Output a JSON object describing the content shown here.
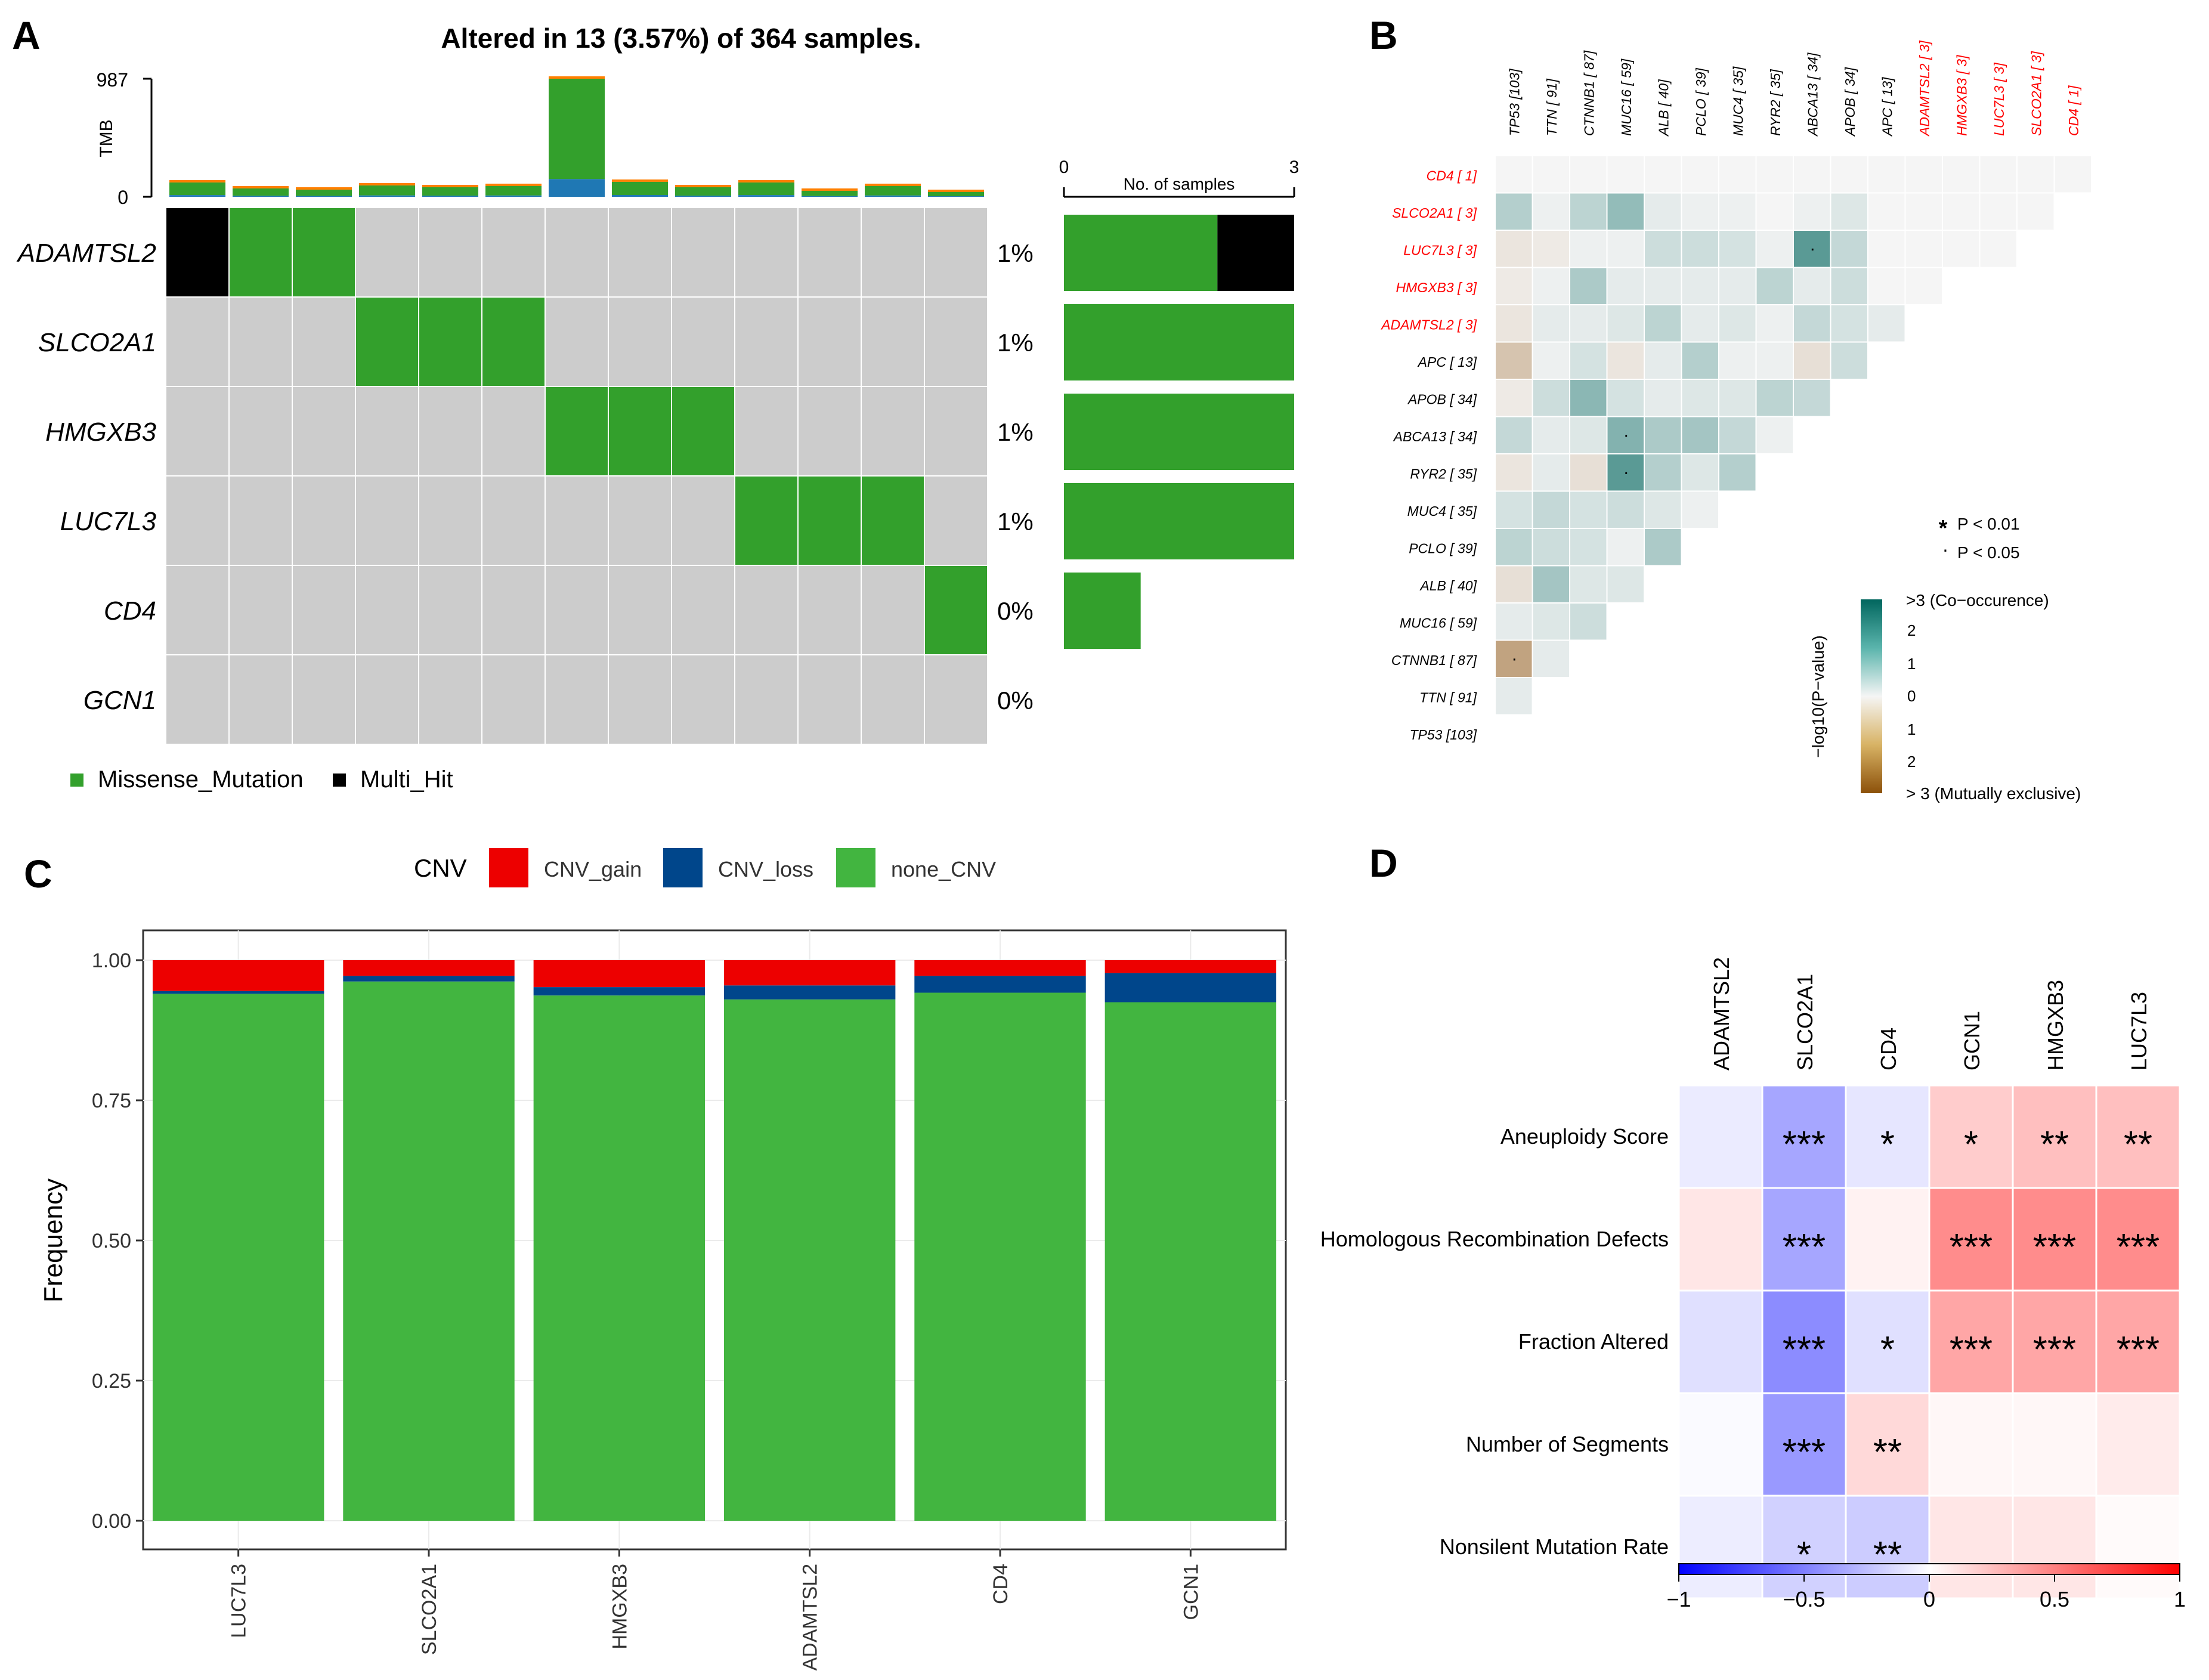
{
  "panel_letters": [
    "A",
    "B",
    "C",
    "D"
  ],
  "chart_data": [
    {
      "panel": "A",
      "type": "heatmap",
      "subtype": "oncoplot",
      "title": "Altered in 13 (3.57%) of 364 samples.",
      "tmb_axis": {
        "label": "TMB",
        "max_label": "987",
        "min_label": "0",
        "max": 987
      },
      "tmb_values": [
        120,
        70,
        60,
        95,
        80,
        90,
        987,
        125,
        80,
        120,
        50,
        90,
        40
      ],
      "genes": [
        "ADAMTSL2",
        "SLCO2A1",
        "HMGXB3",
        "LUC7L3",
        "CD4",
        "GCN1"
      ],
      "percent_labels": [
        "1%",
        "1%",
        "1%",
        "1%",
        "0%",
        "0%"
      ],
      "matrix": [
        [
          "Multi_Hit",
          "Missense_Mutation",
          "Missense_Mutation",
          "",
          "",
          "",
          "",
          "",
          "",
          "",
          "",
          "",
          ""
        ],
        [
          "",
          "",
          "",
          "Missense_Mutation",
          "Missense_Mutation",
          "Missense_Mutation",
          "",
          "",
          "",
          "",
          "",
          "",
          ""
        ],
        [
          "",
          "",
          "",
          "",
          "",
          "",
          "Missense_Mutation",
          "Missense_Mutation",
          "Missense_Mutation",
          "",
          "",
          "",
          ""
        ],
        [
          "",
          "",
          "",
          "",
          "",
          "",
          "",
          "",
          "",
          "Missense_Mutation",
          "Missense_Mutation",
          "Missense_Mutation",
          ""
        ],
        [
          "",
          "",
          "",
          "",
          "",
          "",
          "",
          "",
          "",
          "",
          "",
          "",
          "Missense_Mutation"
        ],
        [
          "",
          "",
          "",
          "",
          "",
          "",
          "",
          "",
          "",
          "",
          "",
          "",
          ""
        ]
      ],
      "side_axis": {
        "label": "No. of samples",
        "min_label": "0",
        "max_label": "3",
        "max": 3
      },
      "side_bars": [
        {
          "missense": 2,
          "multi_hit": 1
        },
        {
          "missense": 3,
          "multi_hit": 0
        },
        {
          "missense": 3,
          "multi_hit": 0
        },
        {
          "missense": 3,
          "multi_hit": 0
        },
        {
          "missense": 1,
          "multi_hit": 0
        },
        {
          "missense": 0,
          "multi_hit": 0
        }
      ],
      "legend": [
        {
          "label": "Missense_Mutation",
          "color": "#33a02c"
        },
        {
          "label": "Multi_Hit",
          "color": "#000000"
        }
      ],
      "colors": {
        "missense": "#33a02c",
        "multi_hit": "#000000",
        "empty": "#cccccc",
        "tmb_blue": "#1f78b4",
        "tmb_orange": "#ff7f00",
        "tmb_red": "#e31a1c"
      }
    },
    {
      "panel": "B",
      "type": "heatmap",
      "subtype": "somatic-interactions",
      "col_labels": [
        "TP53 [103]",
        "TTN [ 91]",
        "CTNNB1 [ 87]",
        "MUC16 [ 59]",
        "ALB [ 40]",
        "PCLO [ 39]",
        "MUC4 [ 35]",
        "RYR2 [ 35]",
        "ABCA13 [ 34]",
        "APOB [ 34]",
        "APC [ 13]",
        "ADAMTSL2 [ 3]",
        "HMGXB3 [ 3]",
        "LUC7L3 [ 3]",
        "SLCO2A1 [ 3]",
        "CD4 [ 1]"
      ],
      "row_labels": [
        "CD4 [ 1]",
        "SLCO2A1 [ 3]",
        "LUC7L3 [ 3]",
        "HMGXB3 [ 3]",
        "ADAMTSL2 [ 3]",
        "APC [ 13]",
        "APOB [ 34]",
        "ABCA13 [ 34]",
        "RYR2 [ 35]",
        "MUC4 [ 35]",
        "PCLO [ 39]",
        "ALB [ 40]",
        "MUC16 [ 59]",
        "CTNNB1 [ 87]",
        "TTN [ 91]",
        "TP53 [103]"
      ],
      "highlighted_count": 5,
      "highlight_color": "#ff0000",
      "values": [
        [
          0,
          0,
          0,
          0,
          0,
          0,
          0,
          0,
          0,
          0,
          0,
          0,
          0,
          0,
          0,
          0
        ],
        [
          0.8,
          0.1,
          0.7,
          1.2,
          0.2,
          0.1,
          0.1,
          0,
          0.1,
          0.3,
          0,
          0,
          0,
          0,
          0
        ],
        [
          -0.3,
          -0.2,
          0.1,
          0.1,
          0.5,
          0.5,
          0.4,
          0.1,
          1.9,
          0.6,
          0,
          0,
          0,
          0
        ],
        [
          -0.2,
          0.1,
          0.9,
          0.2,
          0.2,
          0.2,
          0.2,
          0.7,
          0.2,
          0.5,
          0,
          0
        ],
        [
          -0.3,
          0.2,
          0.2,
          0.3,
          0.7,
          0.2,
          0.3,
          0.1,
          0.6,
          0.4,
          0.2
        ],
        [
          -0.9,
          0.1,
          0.4,
          -0.3,
          0.2,
          0.8,
          0.1,
          0.1,
          -0.4,
          0.5
        ],
        [
          -0.2,
          0.5,
          1.3,
          0.4,
          0.2,
          0.3,
          0.3,
          0.7,
          0.6
        ],
        [
          0.6,
          0.2,
          0.3,
          1.4,
          0.9,
          1.0,
          0.6,
          0.1
        ],
        [
          -0.3,
          0.2,
          -0.4,
          1.9,
          0.8,
          0.3,
          0.8
        ],
        [
          0.4,
          0.6,
          0.4,
          0.5,
          0.3,
          0.1
        ],
        [
          0.7,
          0.5,
          0.4,
          0.1,
          0.9
        ],
        [
          -0.4,
          1.0,
          0.3,
          0.3
        ],
        [
          0.2,
          0.3,
          0.5
        ],
        [
          -1.5,
          0.2
        ],
        [
          0.2
        ],
        []
      ],
      "marks": [
        {
          "row": 2,
          "col": 8,
          "mark": "·"
        },
        {
          "row": 7,
          "col": 3,
          "mark": "·"
        },
        {
          "row": 8,
          "col": 3,
          "mark": "·"
        },
        {
          "row": 13,
          "col": 0,
          "mark": "·"
        }
      ],
      "p_legend": [
        {
          "symbol": "*",
          "label": "P < 0.01"
        },
        {
          "symbol": "·",
          "label": "P < 0.05"
        }
      ],
      "colorbar": {
        "title": "−log10(P−value)",
        "top_label": ">3 (Co−occurence)",
        "bottom_label": "> 3 (Mutually exclusive)",
        "tick_labels": [
          "2",
          "1",
          "0",
          "1",
          "2"
        ],
        "min": -3,
        "max": 3
      },
      "colors": {
        "co_occurrence": "#01665e",
        "mutually_exclusive": "#8c510a",
        "neutral": "#f5f5f5"
      }
    },
    {
      "panel": "C",
      "type": "bar",
      "subtype": "stacked",
      "categories": [
        "LUC7L3",
        "SLCO2A1",
        "HMGXB3",
        "ADAMTSL2",
        "CD4",
        "GCN1"
      ],
      "series": [
        {
          "name": "none_CNV",
          "color": "#42b540",
          "values": [
            0.94,
            0.962,
            0.937,
            0.93,
            0.942,
            0.925
          ]
        },
        {
          "name": "CNV_loss",
          "color": "#00468b",
          "values": [
            0.005,
            0.01,
            0.015,
            0.025,
            0.03,
            0.052
          ]
        },
        {
          "name": "CNV_gain",
          "color": "#ed0000",
          "values": [
            0.055,
            0.028,
            0.048,
            0.045,
            0.028,
            0.023
          ]
        }
      ],
      "legend_title": "CNV",
      "legend_order": [
        "CNV_gain",
        "CNV_loss",
        "none_CNV"
      ],
      "ylabel": "Frequency",
      "xlabel": "",
      "ylim": [
        0,
        1
      ],
      "yticks": [
        "0.00",
        "0.25",
        "0.50",
        "0.75",
        "1.00"
      ],
      "grid": true
    },
    {
      "panel": "D",
      "type": "heatmap",
      "subtype": "correlation",
      "cols": [
        "ADAMTSL2",
        "SLCO2A1",
        "CD4",
        "GCN1",
        "HMGXB3",
        "LUC7L3"
      ],
      "rows": [
        "Aneuploidy Score",
        "Homologous Recombination Defects",
        "Fraction Altered",
        "Number of Segments",
        "Nonsilent Mutation Rate"
      ],
      "values": [
        [
          -0.08,
          -0.35,
          -0.1,
          0.2,
          0.25,
          0.25
        ],
        [
          0.1,
          -0.35,
          0.05,
          0.45,
          0.45,
          0.45
        ],
        [
          -0.12,
          -0.45,
          -0.12,
          0.35,
          0.35,
          0.35
        ],
        [
          -0.02,
          -0.4,
          0.15,
          0.03,
          0.03,
          0.08
        ],
        [
          -0.07,
          -0.18,
          -0.2,
          0.1,
          0.1,
          0.02
        ]
      ],
      "stars": [
        [
          "",
          "***",
          "*",
          "*",
          "**",
          "**"
        ],
        [
          "",
          "***",
          "",
          "***",
          "***",
          "***"
        ],
        [
          "",
          "***",
          "*",
          "***",
          "***",
          "***"
        ],
        [
          "",
          "***",
          "**",
          "",
          "",
          ""
        ],
        [
          "",
          "*",
          "**",
          "",
          "",
          ""
        ]
      ],
      "colorbar": {
        "min": -1,
        "max": 1,
        "tick_labels": [
          "−1",
          "−0.5",
          "0",
          "0.5",
          "1"
        ],
        "tick_values": [
          -1,
          -0.5,
          0,
          0.5,
          1
        ]
      },
      "colors": {
        "negative": "#0000ff",
        "positive": "#ff0000",
        "neutral": "#ffffff"
      }
    }
  ]
}
